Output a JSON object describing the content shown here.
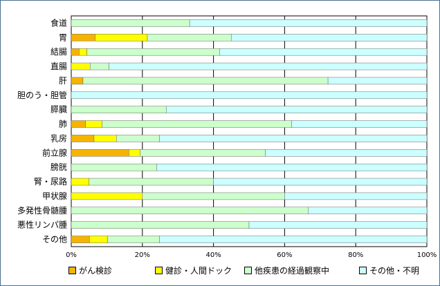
{
  "chart_data": {
    "type": "bar",
    "orientation": "horizontal",
    "stacked": true,
    "categories": [
      "食道",
      "胃",
      "結腸",
      "直腸",
      "肝",
      "胆のう・胆管",
      "膵臓",
      "肺",
      "乳房",
      "前立腺",
      "膀胱",
      "腎・尿路",
      "甲状腺",
      "多発性骨髄腫",
      "悪性リンパ腫",
      "その他"
    ],
    "series": [
      {
        "name": "がん検診",
        "color": "#f6b400",
        "values": [
          0,
          6.7,
          2.2,
          0,
          3.3,
          0,
          0,
          4.0,
          6.4,
          16.2,
          0,
          0,
          0,
          0,
          0,
          5.1
        ]
      },
      {
        "name": "健診・人間ドック",
        "color": "#ffff00",
        "values": [
          0,
          14.7,
          2.2,
          5.3,
          0,
          0,
          0,
          4.7,
          6.3,
          3.2,
          0,
          5.0,
          20.0,
          0,
          0,
          5.1
        ]
      },
      {
        "name": "他疾患の経過観察中",
        "color": "#ccffcc",
        "values": [
          33.3,
          23.6,
          37.3,
          5.3,
          68.9,
          0,
          26.8,
          53.3,
          12.1,
          35.2,
          24.0,
          35.0,
          40.0,
          66.7,
          50.0,
          14.6
        ]
      },
      {
        "name": "その他・不明",
        "color": "#ccffff",
        "values": [
          66.7,
          55.0,
          58.3,
          89.4,
          27.8,
          100,
          73.2,
          38.0,
          75.2,
          45.4,
          76.0,
          60.0,
          40.0,
          33.3,
          50.0,
          75.2
        ]
      }
    ],
    "x_ticks": [
      "0%",
      "20%",
      "40%",
      "60%",
      "80%",
      "100%"
    ],
    "xlim": [
      0,
      100
    ],
    "grid": "vertical",
    "legend_position": "bottom"
  }
}
